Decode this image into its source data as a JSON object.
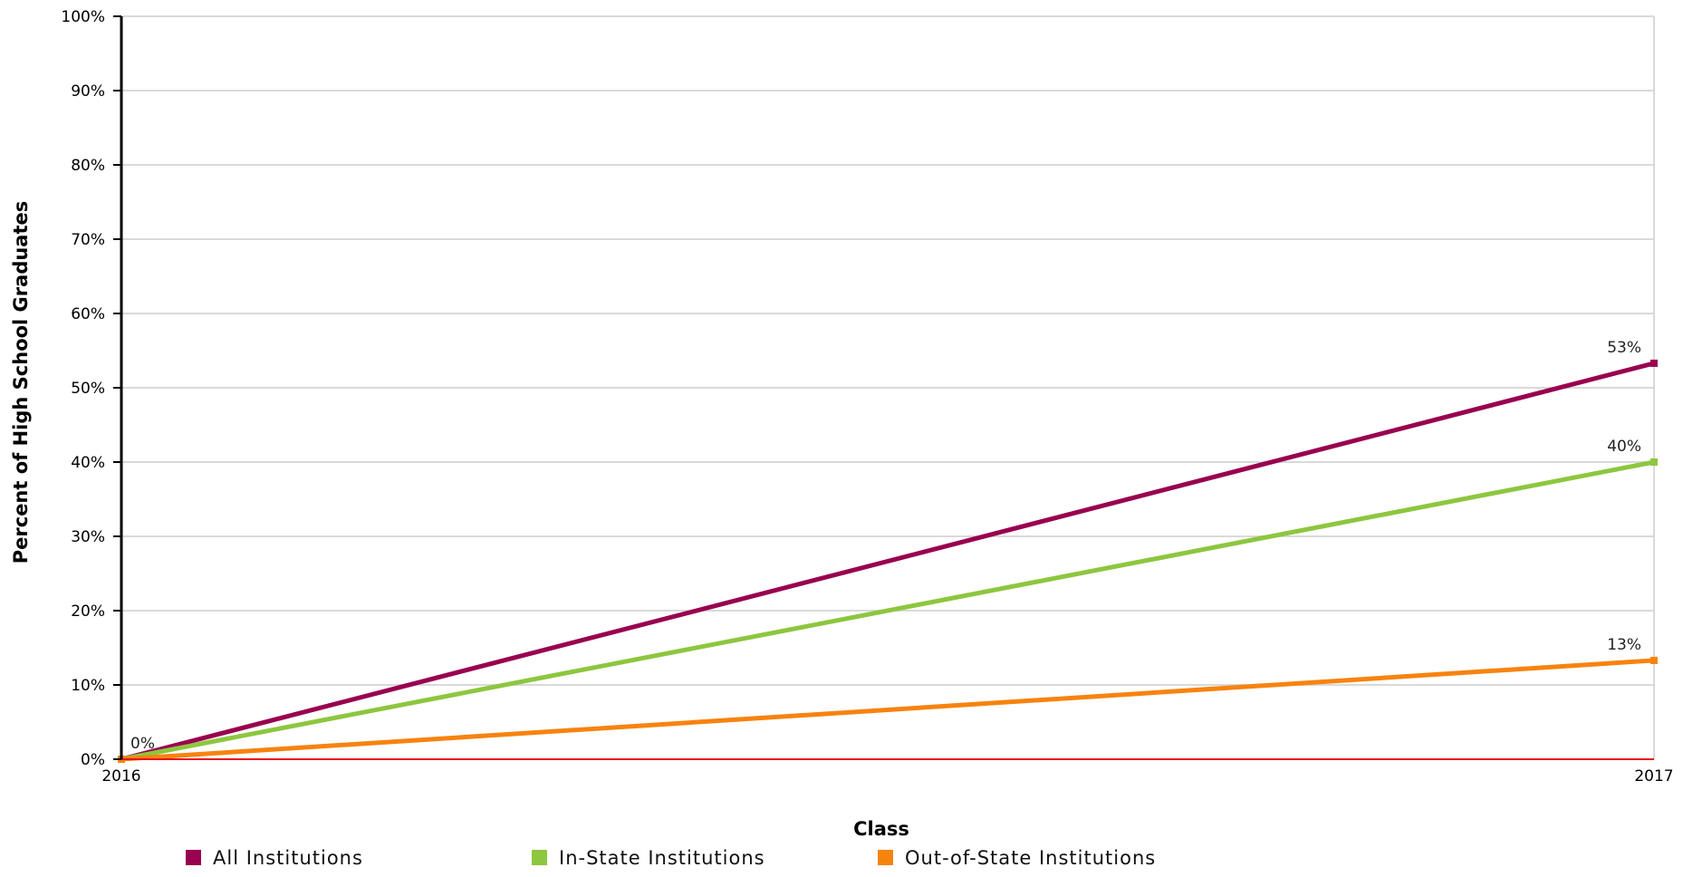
{
  "chart_data": {
    "type": "line",
    "title": "",
    "xlabel": "Class",
    "ylabel": "Percent of High School Graduates",
    "x": [
      "2016",
      "2017"
    ],
    "ylim": [
      0,
      100
    ],
    "yticks": [
      "0%",
      "10%",
      "20%",
      "30%",
      "40%",
      "50%",
      "60%",
      "70%",
      "80%",
      "90%",
      "100%"
    ],
    "grid": true,
    "legend_position": "bottom",
    "series": [
      {
        "name": "All Institutions",
        "color": "#99004f",
        "values": [
          0,
          53.3
        ],
        "labels": [
          "0%",
          "53%"
        ]
      },
      {
        "name": "In-State Institutions",
        "color": "#8dc63f",
        "values": [
          0,
          40
        ],
        "labels": [
          "",
          "40%"
        ]
      },
      {
        "name": "Out-of-State Institutions",
        "color": "#f7830f",
        "values": [
          0,
          13.3
        ],
        "labels": [
          "",
          "13%"
        ]
      }
    ],
    "baseline": {
      "value": 0,
      "color": "#e8141b"
    }
  }
}
